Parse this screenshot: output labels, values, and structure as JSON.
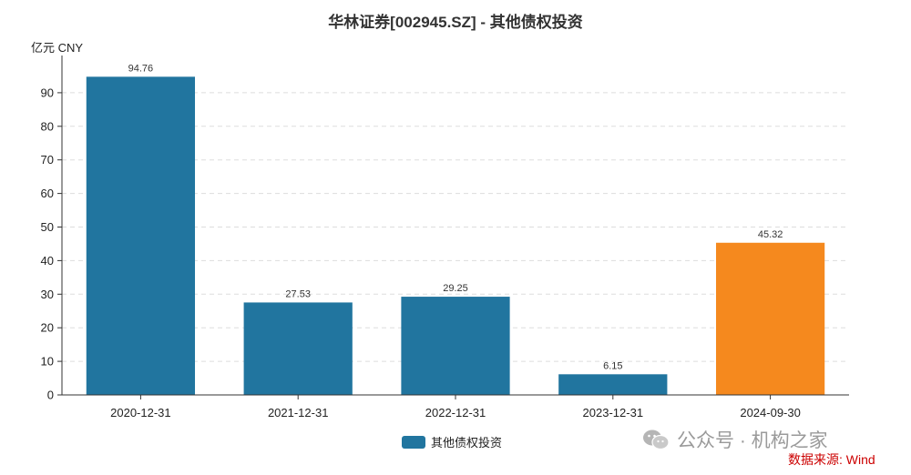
{
  "title": "华林证券[002945.SZ] - 其他债权投资",
  "unit_label": "亿元  CNY",
  "legend_label": "其他债权投资",
  "watermark_text": "公众号 · 机构之家",
  "source_text": "数据来源: Wind",
  "colors": {
    "bar": "#21759f",
    "highlight": "#f5891e",
    "grid": "#dddddd",
    "axis": "#333333"
  },
  "chart_data": {
    "type": "bar",
    "categories": [
      "2020-12-31",
      "2021-12-31",
      "2022-12-31",
      "2023-12-31",
      "2024-09-30"
    ],
    "series": [
      {
        "name": "其他债权投资",
        "values": [
          94.76,
          27.53,
          29.25,
          6.15,
          45.32
        ]
      }
    ],
    "highlight_index": 4,
    "ylim": [
      0,
      100
    ],
    "yticks": [
      0,
      10,
      20,
      30,
      40,
      50,
      60,
      70,
      80,
      90
    ],
    "grid": true,
    "legend_position": "bottom"
  }
}
